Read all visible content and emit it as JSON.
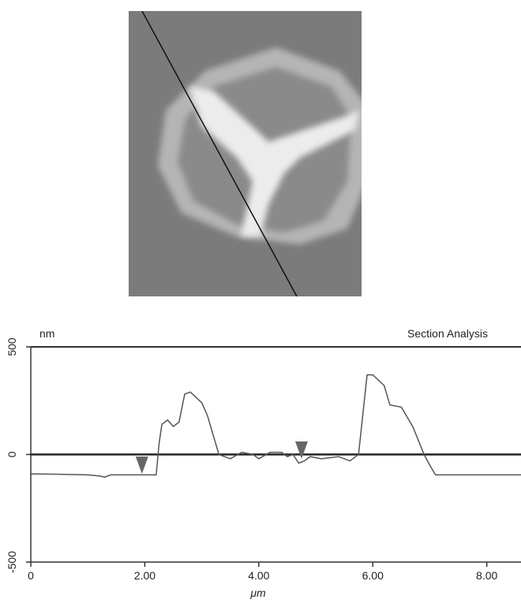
{
  "chart_data": {
    "type": "line",
    "y_unit_label": "nm",
    "title": "Section Analysis",
    "x_label": "μm",
    "xlim": [
      0,
      8.6
    ],
    "ylim": [
      -500,
      500
    ],
    "xticks": [
      0,
      {
        "value": 2,
        "label": "2.00"
      },
      {
        "value": 4,
        "label": "4.00"
      },
      {
        "value": 6,
        "label": "6.00"
      },
      {
        "value": 8,
        "label": "8.00"
      }
    ],
    "yticks": [
      -500,
      0,
      500
    ],
    "color": "#555555",
    "x": [
      0,
      0.5,
      1.0,
      1.2,
      1.3,
      1.4,
      1.9,
      2.2,
      2.25,
      2.3,
      2.4,
      2.5,
      2.6,
      2.7,
      2.8,
      3.0,
      3.1,
      3.2,
      3.3,
      3.5,
      3.7,
      3.9,
      4.0,
      4.2,
      4.4,
      4.5,
      4.6,
      4.7,
      4.8,
      4.9,
      5.1,
      5.4,
      5.6,
      5.75,
      5.9,
      6.0,
      6.2,
      6.3,
      6.5,
      6.7,
      6.9,
      7.0,
      7.1,
      7.5,
      8.0,
      8.6
    ],
    "values": [
      -90,
      -92,
      -95,
      -100,
      -105,
      -95,
      -95,
      -95,
      50,
      140,
      160,
      130,
      150,
      280,
      290,
      240,
      180,
      90,
      0,
      -20,
      10,
      0,
      -20,
      10,
      10,
      -10,
      0,
      -40,
      -30,
      -10,
      -20,
      -10,
      -30,
      0,
      370,
      370,
      320,
      230,
      220,
      130,
      0,
      -50,
      -95,
      -95,
      -95,
      -95
    ],
    "markers": {
      "x": [
        1.95,
        4.75
      ],
      "y": [
        -90,
        -20
      ]
    }
  }
}
